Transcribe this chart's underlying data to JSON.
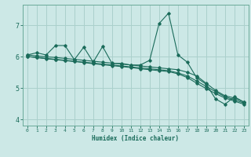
{
  "xlabel": "Humidex (Indice chaleur)",
  "bg_color": "#cce8e6",
  "grid_color": "#aad0cc",
  "line_color": "#1a6b5a",
  "xlim": [
    -0.5,
    23.5
  ],
  "ylim": [
    3.8,
    7.65
  ],
  "xticks": [
    0,
    1,
    2,
    3,
    4,
    5,
    6,
    7,
    8,
    9,
    10,
    11,
    12,
    13,
    14,
    15,
    16,
    17,
    18,
    19,
    20,
    21,
    22,
    23
  ],
  "yticks": [
    4,
    5,
    6,
    7
  ],
  "series_noisy": [
    6.05,
    6.12,
    6.05,
    6.35,
    6.35,
    5.9,
    6.3,
    5.82,
    6.32,
    5.78,
    5.78,
    5.73,
    5.73,
    5.88,
    7.05,
    7.38,
    6.05,
    5.82,
    5.32,
    5.12,
    4.65,
    4.48,
    4.72,
    4.55
  ],
  "series_line2": [
    6.05,
    6.02,
    5.99,
    5.97,
    5.94,
    5.91,
    5.88,
    5.85,
    5.82,
    5.79,
    5.76,
    5.73,
    5.7,
    5.67,
    5.64,
    5.61,
    5.58,
    5.5,
    5.38,
    5.15,
    4.92,
    4.75,
    4.68,
    4.55
  ],
  "series_line3": [
    6.0,
    5.97,
    5.94,
    5.91,
    5.88,
    5.85,
    5.82,
    5.79,
    5.76,
    5.73,
    5.7,
    5.67,
    5.64,
    5.61,
    5.58,
    5.55,
    5.48,
    5.38,
    5.22,
    5.05,
    4.88,
    4.72,
    4.62,
    4.52
  ],
  "series_line4": [
    6.0,
    5.97,
    5.93,
    5.9,
    5.87,
    5.84,
    5.81,
    5.77,
    5.74,
    5.71,
    5.68,
    5.65,
    5.61,
    5.58,
    5.55,
    5.52,
    5.45,
    5.33,
    5.15,
    4.98,
    4.82,
    4.68,
    4.58,
    4.48
  ]
}
